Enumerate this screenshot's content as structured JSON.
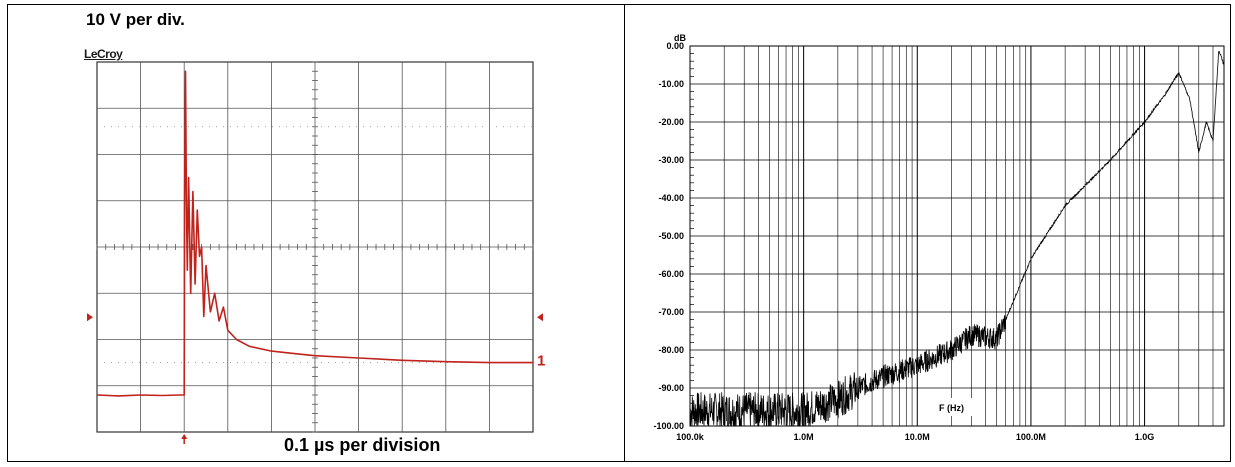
{
  "chart_data": [
    {
      "type": "line",
      "title": "10 V per div.",
      "xlabel": "0.1 µs per division",
      "brand": "LeCroy",
      "channel_marker": "1",
      "grid": true,
      "x_divisions": 10,
      "y_divisions": 8,
      "x_unit": "µs",
      "y_unit": "V",
      "xlim": [
        0,
        1.0
      ],
      "ylim": [
        -60,
        20
      ],
      "series": [
        {
          "color": "#c0231c",
          "x": [
            0,
            0.05,
            0.1,
            0.15,
            0.19,
            0.2,
            0.201,
            0.203,
            0.205,
            0.207,
            0.21,
            0.215,
            0.22,
            0.225,
            0.23,
            0.235,
            0.24,
            0.245,
            0.25,
            0.26,
            0.27,
            0.28,
            0.29,
            0.3,
            0.32,
            0.35,
            0.4,
            0.45,
            0.5,
            0.6,
            0.7,
            0.8,
            0.9,
            1.0
          ],
          "y": [
            -52,
            -52.2,
            -52,
            -52.1,
            -52,
            -52,
            -10,
            18,
            -10,
            -25,
            -5,
            -30,
            -8,
            -28,
            -12,
            -22,
            -20,
            -35,
            -24,
            -34,
            -30,
            -36,
            -33,
            -38,
            -40,
            -41.5,
            -42.5,
            -43,
            -43.5,
            -44,
            -44.5,
            -44.8,
            -45,
            -45
          ]
        }
      ]
    },
    {
      "type": "line",
      "title": "",
      "xlabel": "F (Hz)",
      "ylabel": "dB",
      "x_scale": "log",
      "grid": true,
      "xlim": [
        100000,
        5000000000
      ],
      "ylim": [
        -100,
        0
      ],
      "x_ticks": [
        "100.0k",
        "1.0M",
        "10.0M",
        "100.0M",
        "1.0G"
      ],
      "y_ticks": [
        "0.00",
        "-10.00",
        "-20.00",
        "-30.00",
        "-40.00",
        "-50.00",
        "-60.00",
        "-70.00",
        "-80.00",
        "-90.00",
        "-100.00"
      ],
      "series": [
        {
          "color": "#000000",
          "x": [
            100000,
            300000,
            1000000,
            2000000,
            3000000,
            5000000,
            10000000,
            20000000,
            30000000,
            50000000,
            60000000,
            80000000,
            100000000,
            200000000,
            500000000,
            1000000000,
            1500000000,
            2000000000,
            2500000000,
            3000000000,
            3500000000,
            4000000000,
            4500000000,
            5000000000
          ],
          "y": [
            -96,
            -96,
            -96,
            -93,
            -90,
            -87,
            -84,
            -80,
            -76,
            -77,
            -72,
            -63,
            -56,
            -42,
            -30,
            -20,
            -13,
            -7,
            -14,
            -28,
            -20,
            -25,
            -1,
            -5
          ]
        }
      ]
    }
  ]
}
